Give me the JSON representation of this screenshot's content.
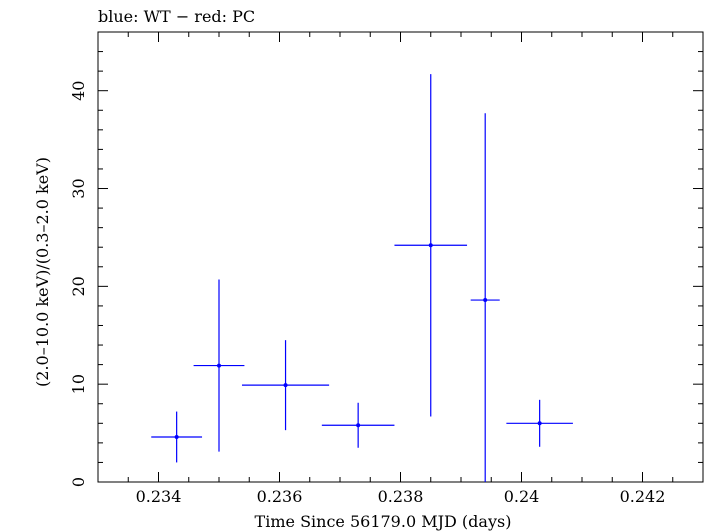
{
  "chart_data": {
    "type": "scatter",
    "title": "blue: WT − red: PC",
    "xlabel": "Time Since 56179.0 MJD (days)",
    "ylabel": "(2.0–10.0 keV)/(0.3–2.0 keV)",
    "xlim": [
      0.233,
      0.243
    ],
    "ylim": [
      0,
      46
    ],
    "x_ticks": [
      0.234,
      0.236,
      0.238,
      0.24,
      0.242
    ],
    "x_tick_labels": [
      "0.234",
      "0.236",
      "0.238",
      "0.24",
      "0.242"
    ],
    "y_ticks": [
      0,
      10,
      20,
      30,
      40
    ],
    "y_tick_labels": [
      "0",
      "10",
      "20",
      "30",
      "40"
    ],
    "grid": false,
    "series": [
      {
        "color": "#0000ff",
        "points": [
          {
            "x": 0.2343,
            "xerr_lo": 0.00042,
            "xerr_hi": 0.00042,
            "y": 4.6,
            "yerr_lo": 2.6,
            "yerr_hi": 2.6
          },
          {
            "x": 0.235,
            "xerr_lo": 0.00042,
            "xerr_hi": 0.00042,
            "y": 11.9,
            "yerr_lo": 8.8,
            "yerr_hi": 8.8
          },
          {
            "x": 0.2361,
            "xerr_lo": 0.00072,
            "xerr_hi": 0.00072,
            "y": 9.9,
            "yerr_lo": 4.6,
            "yerr_hi": 4.6
          },
          {
            "x": 0.2373,
            "xerr_lo": 0.0006,
            "xerr_hi": 0.0006,
            "y": 5.8,
            "yerr_lo": 2.3,
            "yerr_hi": 2.3
          },
          {
            "x": 0.2385,
            "xerr_lo": 0.0006,
            "xerr_hi": 0.0006,
            "y": 24.2,
            "yerr_lo": 17.5,
            "yerr_hi": 17.5
          },
          {
            "x": 0.2394,
            "xerr_lo": 0.00024,
            "xerr_hi": 0.00024,
            "y": 18.6,
            "yerr_lo": 18.6,
            "yerr_hi": 19.1
          },
          {
            "x": 0.2403,
            "xerr_lo": 0.00055,
            "xerr_hi": 0.00055,
            "y": 6.0,
            "yerr_lo": 2.4,
            "yerr_hi": 2.4
          }
        ]
      }
    ]
  }
}
